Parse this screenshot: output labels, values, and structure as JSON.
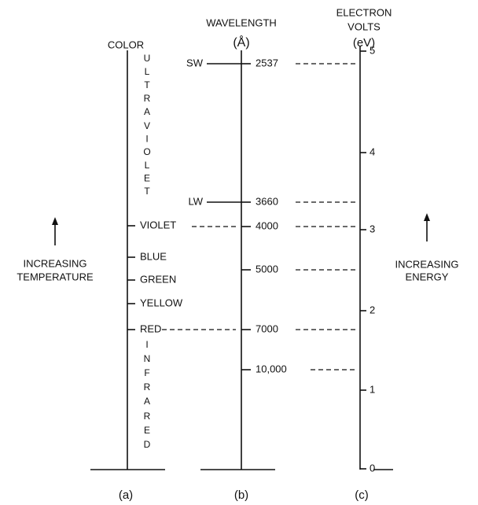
{
  "columns": [
    {
      "title": [
        "COLOR"
      ],
      "caption": "(a)",
      "vertical_words": [
        "ULTRA",
        "VIOLET",
        "INFRA",
        "RED"
      ],
      "labels": [
        "VIOLET",
        "BLUE",
        "GREEN",
        "YELLOW",
        "RED"
      ]
    },
    {
      "title": [
        "WAVELENGTH",
        "(Å)"
      ],
      "caption": "(b)",
      "side_labels": [
        "SW",
        "LW"
      ],
      "labels": [
        "2537",
        "3660",
        "4000",
        "5000",
        "7000",
        "10,000"
      ]
    },
    {
      "title": [
        "ELECTRON",
        "VOLTS",
        "(eV)"
      ],
      "caption": "(c)",
      "ticks": [
        "5",
        "4",
        "3",
        "2",
        "1",
        "0"
      ]
    }
  ],
  "annotations": {
    "left": [
      "INCREASING",
      "TEMPERATURE"
    ],
    "right": [
      "INCREASING",
      "ENERGY"
    ]
  }
}
